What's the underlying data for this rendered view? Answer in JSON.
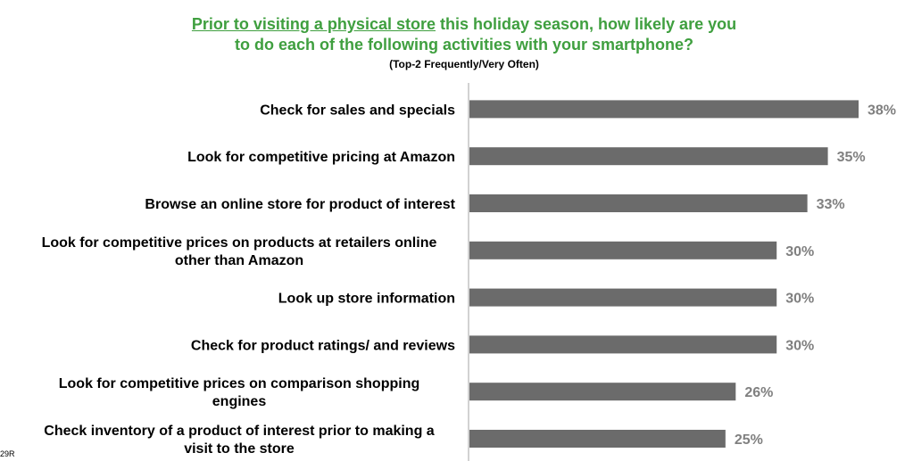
{
  "title": {
    "underlined": "Prior to visiting a physical store",
    "line1_rest": " this holiday season, how likely are you",
    "line2": "to do each of the following activities with your smartphone?"
  },
  "subtitle": "(Top-2  Frequently/Very Often)",
  "footnote": "29R",
  "chart_data": {
    "type": "bar",
    "orientation": "horizontal",
    "categories": [
      [
        "Check for sales and specials"
      ],
      [
        "Look for competitive pricing at Amazon"
      ],
      [
        "Browse an online store for product of interest"
      ],
      [
        "Look for competitive prices on products at retailers online",
        "other than Amazon"
      ],
      [
        "Look up store information"
      ],
      [
        "Check for product ratings/ and reviews"
      ],
      [
        "Look for competitive prices on comparison shopping",
        "engines"
      ],
      [
        "Check inventory of a product of interest prior to making a",
        "visit to the store"
      ]
    ],
    "values": [
      38,
      35,
      33,
      30,
      30,
      30,
      26,
      25
    ],
    "value_labels": [
      "38%",
      "35%",
      "33%",
      "30%",
      "30%",
      "30%",
      "26%",
      "25%"
    ],
    "bar_color": "#6b6b6b",
    "value_label_color": "#808080",
    "title_color": "#3f9f3f",
    "xlim": [
      0,
      38
    ],
    "grid": false
  }
}
